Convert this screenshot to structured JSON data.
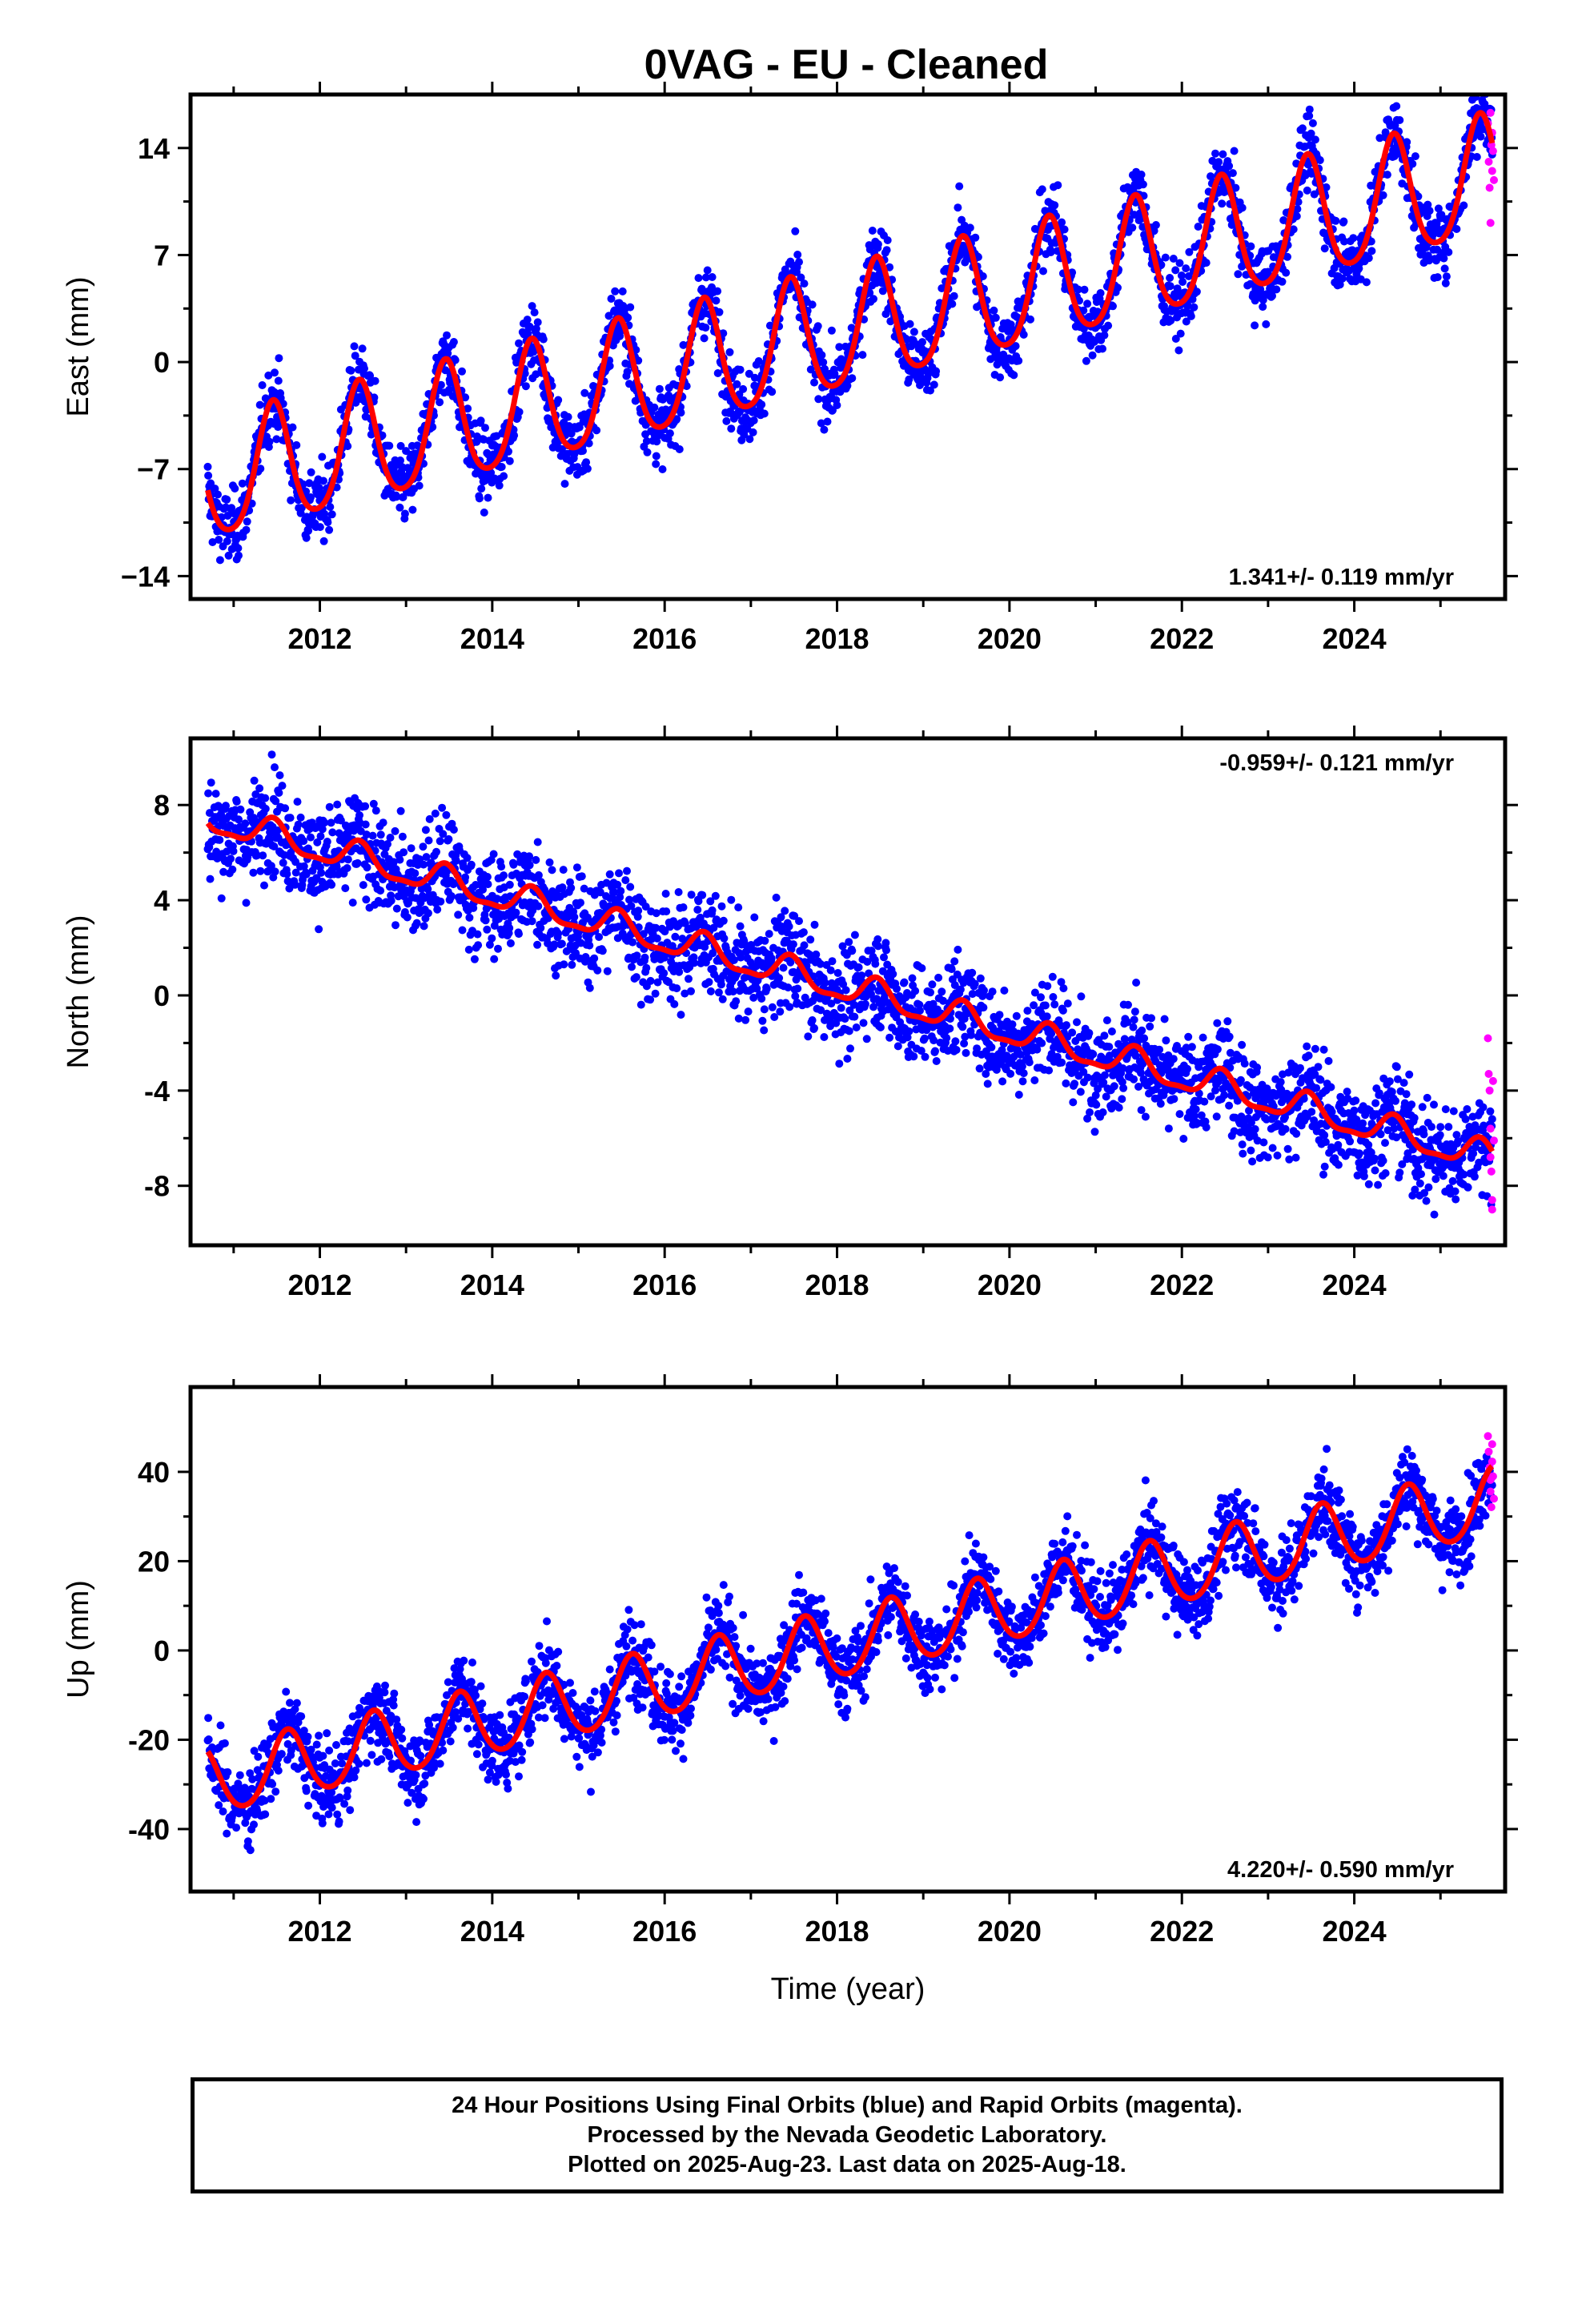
{
  "chart_title": "0VAG  - EU - Cleaned",
  "colors": {
    "final_orbits": "#0000ff",
    "rapid_orbits": "#ff00ff",
    "model_fit": "#ff0000"
  },
  "chart_data": [
    {
      "type": "scatter",
      "component": "East",
      "ylabel": "East (mm)",
      "xlabel": "",
      "x_range": [
        2010.5,
        2025.75
      ],
      "ylim": [
        -15.5,
        17.5
      ],
      "yticks": [
        -14,
        -7,
        0,
        7,
        14
      ],
      "ytick_labels": [
        "−14",
        "−7",
        "0",
        "7",
        "14"
      ],
      "xticks": [
        2012,
        2014,
        2016,
        2018,
        2020,
        2022,
        2024
      ],
      "rate_label": "1.341+/- 0.119 mm/yr",
      "rate_position": "bottom-right",
      "model": {
        "start_year": 2010.7,
        "end_year": 2025.6,
        "value_at_2018": 1.8,
        "rate_mm_per_yr": 1.341,
        "seasonal_amplitude_mm": 3.9,
        "seasonal_peak_month": 6,
        "semiannual_amplitude_mm": 0.6
      },
      "scatter_noise_mm": 1.15,
      "rapid_points": [
        [
          2025.55,
          15.6
        ],
        [
          2025.56,
          13.1
        ],
        [
          2025.57,
          11.4
        ],
        [
          2025.58,
          9.1
        ],
        [
          2025.58,
          16.3
        ],
        [
          2025.59,
          14.2
        ],
        [
          2025.6,
          12.5
        ],
        [
          2025.6,
          15.0
        ],
        [
          2025.61,
          13.8
        ],
        [
          2025.62,
          11.9
        ]
      ]
    },
    {
      "type": "scatter",
      "component": "North",
      "ylabel": "North (mm)",
      "xlabel": "",
      "x_range": [
        2010.5,
        2025.75
      ],
      "ylim": [
        -10.5,
        10.8
      ],
      "yticks": [
        -8,
        -4,
        0,
        4,
        8
      ],
      "ytick_labels": [
        "-8",
        "-4",
        "0",
        "4",
        "8"
      ],
      "xticks": [
        2012,
        2014,
        2016,
        2018,
        2020,
        2022,
        2024
      ],
      "rate_label": "-0.959+/- 0.121 mm/yr",
      "rate_position": "top-right",
      "model": {
        "start_year": 2010.7,
        "end_year": 2025.6,
        "value_at_2018": 0.4,
        "rate_mm_per_yr": -0.959,
        "seasonal_amplitude_mm": 0.6,
        "seasonal_peak_month": 6,
        "semiannual_amplitude_mm": 0.2
      },
      "scatter_noise_mm": 1.05,
      "rapid_points": [
        [
          2025.55,
          -1.8
        ],
        [
          2025.56,
          -3.3
        ],
        [
          2025.57,
          -4.0
        ],
        [
          2025.58,
          -5.6
        ],
        [
          2025.58,
          -6.8
        ],
        [
          2025.59,
          -7.4
        ],
        [
          2025.6,
          -8.6
        ],
        [
          2025.6,
          -9.0
        ],
        [
          2025.61,
          -3.6
        ],
        [
          2025.62,
          -6.1
        ]
      ]
    },
    {
      "type": "scatter",
      "component": "Up",
      "ylabel": "Up (mm)",
      "xlabel": "Time (year)",
      "x_range": [
        2010.5,
        2025.75
      ],
      "ylim": [
        -54,
        59
      ],
      "yticks": [
        -40,
        -20,
        0,
        20,
        40
      ],
      "ytick_labels": [
        "-40",
        "-20",
        "0",
        "20",
        "40"
      ],
      "xticks": [
        2012,
        2014,
        2016,
        2018,
        2020,
        2022,
        2024
      ],
      "rate_label": "4.220+/- 0.590 mm/yr",
      "rate_position": "bottom-right",
      "model": {
        "start_year": 2010.7,
        "end_year": 2025.6,
        "value_at_2018": 1.0,
        "rate_mm_per_yr": 4.22,
        "seasonal_amplitude_mm": 7.5,
        "seasonal_peak_month": 8,
        "semiannual_amplitude_mm": 0.8
      },
      "scatter_noise_mm": 4.4,
      "rapid_points": [
        [
          2025.55,
          48.0
        ],
        [
          2025.56,
          44.5
        ],
        [
          2025.57,
          41.0
        ],
        [
          2025.58,
          38.2
        ],
        [
          2025.58,
          35.6
        ],
        [
          2025.59,
          32.1
        ],
        [
          2025.6,
          46.2
        ],
        [
          2025.6,
          42.3
        ],
        [
          2025.61,
          39.0
        ],
        [
          2025.62,
          34.0
        ]
      ]
    }
  ],
  "footer": {
    "line1": "24 Hour Positions Using Final Orbits (blue) and Rapid Orbits (magenta).",
    "line2": "Processed by the Nevada Geodetic Laboratory.",
    "line3": "Plotted on 2025-Aug-23. Last data on 2025-Aug-18."
  }
}
